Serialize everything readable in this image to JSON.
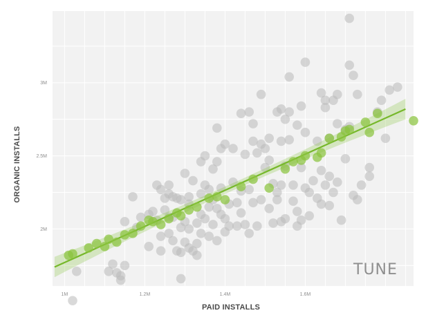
{
  "chart_data": {
    "type": "scatter",
    "title": "",
    "xlabel": "PAID INSTALLS",
    "ylabel": "ORGANIC INSTALLS",
    "xlim": [
      0.97,
      1.87
    ],
    "ylim": [
      1.61,
      3.49
    ],
    "x_ticks": [
      {
        "value": 1.0,
        "label": "1M"
      },
      {
        "value": 1.2,
        "label": "1.2M"
      },
      {
        "value": 1.4,
        "label": "1.4M"
      },
      {
        "value": 1.6,
        "label": "1.6M"
      }
    ],
    "y_ticks": [
      {
        "value": 2.0,
        "label": "2M"
      },
      {
        "value": 2.5,
        "label": "2.5M"
      },
      {
        "value": 3.0,
        "label": "3M"
      }
    ],
    "grid": true,
    "background": "#f2f2f2",
    "grid_color": "#ffffff",
    "series": [
      {
        "color": "#b9b9b9",
        "points": [
          [
            1.02,
            1.51
          ],
          [
            1.03,
            1.71
          ],
          [
            1.11,
            1.71
          ],
          [
            1.12,
            1.76
          ],
          [
            1.13,
            1.7
          ],
          [
            1.14,
            1.68
          ],
          [
            1.14,
            1.65
          ],
          [
            1.15,
            1.75
          ],
          [
            1.15,
            2.05
          ],
          [
            1.17,
            2.22
          ],
          [
            1.18,
            2.01
          ],
          [
            1.19,
            2.08
          ],
          [
            1.21,
            2.1
          ],
          [
            1.21,
            1.88
          ],
          [
            1.22,
            2.12
          ],
          [
            1.23,
            2.3
          ],
          [
            1.23,
            2.06
          ],
          [
            1.24,
            2.27
          ],
          [
            1.24,
            1.95
          ],
          [
            1.24,
            1.85
          ],
          [
            1.25,
            2.21
          ],
          [
            1.25,
            2.13
          ],
          [
            1.26,
            2.3
          ],
          [
            1.26,
            2.24
          ],
          [
            1.26,
            2.08
          ],
          [
            1.26,
            1.97
          ],
          [
            1.27,
            2.22
          ],
          [
            1.27,
            2.08
          ],
          [
            1.27,
            1.92
          ],
          [
            1.28,
            2.21
          ],
          [
            1.28,
            1.85
          ],
          [
            1.29,
            2.2
          ],
          [
            1.29,
            2.01
          ],
          [
            1.29,
            1.84
          ],
          [
            1.29,
            1.66
          ],
          [
            1.3,
            2.38
          ],
          [
            1.3,
            2.05
          ],
          [
            1.3,
            1.91
          ],
          [
            1.31,
            2.22
          ],
          [
            1.31,
            2.17
          ],
          [
            1.31,
            2.0
          ],
          [
            1.31,
            1.87
          ],
          [
            1.32,
            2.33
          ],
          [
            1.32,
            1.85
          ],
          [
            1.33,
            2.04
          ],
          [
            1.33,
            1.9
          ],
          [
            1.33,
            1.82
          ],
          [
            1.34,
            2.46
          ],
          [
            1.34,
            2.24
          ],
          [
            1.34,
            2.1
          ],
          [
            1.34,
            1.97
          ],
          [
            1.35,
            2.5
          ],
          [
            1.35,
            2.3
          ],
          [
            1.35,
            2.07
          ],
          [
            1.36,
            2.27
          ],
          [
            1.36,
            2.15
          ],
          [
            1.36,
            1.95
          ],
          [
            1.37,
            2.41
          ],
          [
            1.37,
            2.2
          ],
          [
            1.37,
            2.03
          ],
          [
            1.38,
            2.69
          ],
          [
            1.38,
            2.46
          ],
          [
            1.38,
            2.14
          ],
          [
            1.38,
            1.92
          ],
          [
            1.39,
            2.55
          ],
          [
            1.39,
            2.28
          ],
          [
            1.39,
            2.1
          ],
          [
            1.4,
            2.58
          ],
          [
            1.4,
            2.07
          ],
          [
            1.4,
            1.98
          ],
          [
            1.41,
            2.17
          ],
          [
            1.41,
            2.02
          ],
          [
            1.42,
            2.32
          ],
          [
            1.42,
            2.55
          ],
          [
            1.43,
            2.18
          ],
          [
            1.43,
            2.02
          ],
          [
            1.44,
            2.79
          ],
          [
            1.44,
            2.26
          ],
          [
            1.44,
            2.11
          ],
          [
            1.45,
            2.51
          ],
          [
            1.45,
            2.03
          ],
          [
            1.46,
            2.8
          ],
          [
            1.46,
            2.27
          ],
          [
            1.46,
            1.97
          ],
          [
            1.47,
            2.72
          ],
          [
            1.47,
            2.6
          ],
          [
            1.47,
            2.18
          ],
          [
            1.48,
            2.52
          ],
          [
            1.48,
            2.02
          ],
          [
            1.49,
            2.92
          ],
          [
            1.49,
            2.58
          ],
          [
            1.49,
            2.2
          ],
          [
            1.5,
            2.55
          ],
          [
            1.5,
            2.42
          ],
          [
            1.51,
            2.62
          ],
          [
            1.51,
            2.14
          ],
          [
            1.51,
            2.47
          ],
          [
            1.52,
            2.31
          ],
          [
            1.52,
            2.04
          ],
          [
            1.53,
            2.8
          ],
          [
            1.53,
            2.25
          ],
          [
            1.53,
            2.2
          ],
          [
            1.54,
            2.82
          ],
          [
            1.54,
            2.6
          ],
          [
            1.54,
            2.3
          ],
          [
            1.54,
            2.05
          ],
          [
            1.55,
            2.75
          ],
          [
            1.55,
            2.43
          ],
          [
            1.55,
            2.07
          ],
          [
            1.56,
            3.04
          ],
          [
            1.56,
            2.8
          ],
          [
            1.56,
            2.61
          ],
          [
            1.57,
            2.3
          ],
          [
            1.57,
            2.19
          ],
          [
            1.58,
            2.71
          ],
          [
            1.58,
            2.12
          ],
          [
            1.58,
            2.02
          ],
          [
            1.59,
            2.84
          ],
          [
            1.59,
            2.42
          ],
          [
            1.59,
            2.06
          ],
          [
            1.6,
            3.14
          ],
          [
            1.6,
            2.66
          ],
          [
            1.6,
            2.28
          ],
          [
            1.61,
            2.25
          ],
          [
            1.61,
            2.09
          ],
          [
            1.62,
            2.33
          ],
          [
            1.63,
            2.21
          ],
          [
            1.63,
            2.6
          ],
          [
            1.64,
            2.93
          ],
          [
            1.64,
            2.4
          ],
          [
            1.64,
            2.17
          ],
          [
            1.65,
            2.88
          ],
          [
            1.65,
            2.83
          ],
          [
            1.65,
            2.3
          ],
          [
            1.66,
            2.62
          ],
          [
            1.66,
            2.36
          ],
          [
            1.66,
            2.16
          ],
          [
            1.67,
            2.88
          ],
          [
            1.67,
            2.25
          ],
          [
            1.68,
            2.92
          ],
          [
            1.68,
            2.72
          ],
          [
            1.68,
            2.32
          ],
          [
            1.69,
            2.06
          ],
          [
            1.7,
            2.48
          ],
          [
            1.7,
            2.68
          ],
          [
            1.71,
            3.44
          ],
          [
            1.71,
            3.12
          ],
          [
            1.71,
            2.7
          ],
          [
            1.72,
            3.05
          ],
          [
            1.72,
            2.23
          ],
          [
            1.73,
            2.92
          ],
          [
            1.73,
            2.2
          ],
          [
            1.74,
            2.3
          ],
          [
            1.76,
            2.42
          ],
          [
            1.76,
            2.36
          ],
          [
            1.78,
            2.8
          ],
          [
            1.79,
            2.88
          ],
          [
            1.8,
            2.62
          ],
          [
            1.81,
            2.95
          ],
          [
            1.83,
            2.97
          ]
        ]
      },
      {
        "color": "#8ac43f",
        "points": [
          [
            1.01,
            1.82
          ],
          [
            1.02,
            1.83
          ],
          [
            1.06,
            1.87
          ],
          [
            1.08,
            1.9
          ],
          [
            1.1,
            1.88
          ],
          [
            1.11,
            1.93
          ],
          [
            1.13,
            1.91
          ],
          [
            1.15,
            1.96
          ],
          [
            1.17,
            1.97
          ],
          [
            1.19,
            2.02
          ],
          [
            1.21,
            2.06
          ],
          [
            1.22,
            2.05
          ],
          [
            1.24,
            2.03
          ],
          [
            1.26,
            2.07
          ],
          [
            1.28,
            2.11
          ],
          [
            1.29,
            2.09
          ],
          [
            1.31,
            2.13
          ],
          [
            1.33,
            2.15
          ],
          [
            1.36,
            2.21
          ],
          [
            1.38,
            2.22
          ],
          [
            1.4,
            2.2
          ],
          [
            1.44,
            2.29
          ],
          [
            1.47,
            2.34
          ],
          [
            1.51,
            2.28
          ],
          [
            1.55,
            2.41
          ],
          [
            1.57,
            2.46
          ],
          [
            1.59,
            2.47
          ],
          [
            1.6,
            2.5
          ],
          [
            1.63,
            2.49
          ],
          [
            1.64,
            2.52
          ],
          [
            1.66,
            2.62
          ],
          [
            1.69,
            2.63
          ],
          [
            1.7,
            2.67
          ],
          [
            1.71,
            2.68
          ],
          [
            1.75,
            2.73
          ],
          [
            1.76,
            2.66
          ],
          [
            1.78,
            2.79
          ],
          [
            1.87,
            2.74
          ]
        ]
      }
    ],
    "trendline": {
      "color": "#76b82a",
      "band_color": "#8ac43f",
      "x": [
        0.975,
        1.85
      ],
      "y": [
        1.74,
        2.82
      ]
    }
  },
  "brand": {
    "text": "TUNE"
  }
}
